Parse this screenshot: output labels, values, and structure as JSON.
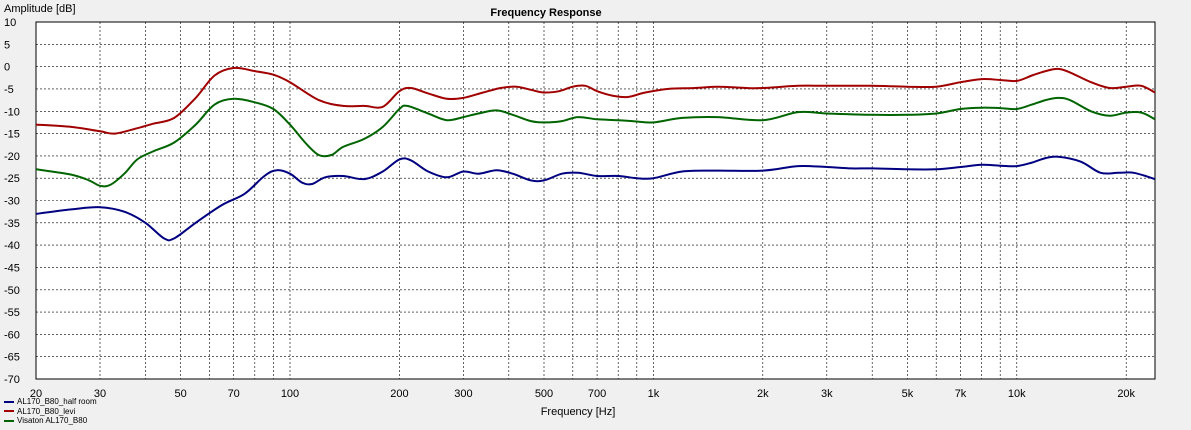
{
  "chart_data": {
    "type": "line",
    "title": "Frequency Response",
    "xlabel": "Frequency [Hz]",
    "ylabel": "Amplitude [dB]",
    "xscale": "log",
    "xlim": [
      20,
      24000
    ],
    "ylim": [
      -70,
      10
    ],
    "grid": true,
    "legend_position": "bottom-left",
    "x_ticks": [
      {
        "v": 20,
        "label": "20"
      },
      {
        "v": 30,
        "label": "30"
      },
      {
        "v": 50,
        "label": "50"
      },
      {
        "v": 70,
        "label": "70"
      },
      {
        "v": 100,
        "label": "100"
      },
      {
        "v": 200,
        "label": "200"
      },
      {
        "v": 300,
        "label": "300"
      },
      {
        "v": 500,
        "label": "500"
      },
      {
        "v": 700,
        "label": "700"
      },
      {
        "v": 1000,
        "label": "1k"
      },
      {
        "v": 2000,
        "label": "2k"
      },
      {
        "v": 3000,
        "label": "3k"
      },
      {
        "v": 5000,
        "label": "5k"
      },
      {
        "v": 7000,
        "label": "7k"
      },
      {
        "v": 10000,
        "label": "10k"
      },
      {
        "v": 20000,
        "label": "20k"
      }
    ],
    "y_ticks": [
      10,
      5,
      0,
      -5,
      -10,
      -15,
      -20,
      -25,
      -30,
      -35,
      -40,
      -45,
      -50,
      -55,
      -60,
      -65,
      -70
    ],
    "series": [
      {
        "name": "AL170_B80_half room",
        "color": "#000080",
        "points": [
          [
            20,
            -33
          ],
          [
            25,
            -32
          ],
          [
            30,
            -31.5
          ],
          [
            35,
            -32.5
          ],
          [
            40,
            -35
          ],
          [
            45,
            -38.5
          ],
          [
            48,
            -38.5
          ],
          [
            55,
            -35
          ],
          [
            65,
            -31
          ],
          [
            75,
            -28.5
          ],
          [
            85,
            -24.5
          ],
          [
            92,
            -23.2
          ],
          [
            100,
            -24
          ],
          [
            108,
            -26
          ],
          [
            115,
            -26.3
          ],
          [
            125,
            -24.8
          ],
          [
            140,
            -24.5
          ],
          [
            160,
            -25.2
          ],
          [
            180,
            -23.5
          ],
          [
            200,
            -20.8
          ],
          [
            215,
            -21
          ],
          [
            240,
            -23.5
          ],
          [
            270,
            -24.8
          ],
          [
            300,
            -23.5
          ],
          [
            330,
            -24
          ],
          [
            370,
            -23.2
          ],
          [
            410,
            -24
          ],
          [
            460,
            -25.5
          ],
          [
            500,
            -25.5
          ],
          [
            560,
            -24
          ],
          [
            620,
            -23.8
          ],
          [
            700,
            -24.5
          ],
          [
            800,
            -24.5
          ],
          [
            900,
            -25
          ],
          [
            1000,
            -25
          ],
          [
            1200,
            -23.5
          ],
          [
            1500,
            -23.3
          ],
          [
            2000,
            -23.3
          ],
          [
            2500,
            -22.3
          ],
          [
            3000,
            -22.5
          ],
          [
            3500,
            -22.8
          ],
          [
            4000,
            -22.8
          ],
          [
            5000,
            -23
          ],
          [
            6000,
            -23
          ],
          [
            7000,
            -22.5
          ],
          [
            8000,
            -22
          ],
          [
            9000,
            -22.2
          ],
          [
            10000,
            -22.3
          ],
          [
            11000,
            -21.5
          ],
          [
            12000,
            -20.5
          ],
          [
            13000,
            -20.2
          ],
          [
            15000,
            -21.3
          ],
          [
            17000,
            -23.8
          ],
          [
            19000,
            -23.8
          ],
          [
            21000,
            -23.8
          ],
          [
            24000,
            -25.2
          ]
        ]
      },
      {
        "name": "AL170_B80_levi",
        "color": "#a00000",
        "points": [
          [
            20,
            -13
          ],
          [
            25,
            -13.5
          ],
          [
            30,
            -14.5
          ],
          [
            33,
            -15
          ],
          [
            38,
            -13.8
          ],
          [
            42,
            -12.8
          ],
          [
            48,
            -11.5
          ],
          [
            55,
            -7
          ],
          [
            62,
            -2
          ],
          [
            70,
            -0.3
          ],
          [
            80,
            -1
          ],
          [
            90,
            -1.8
          ],
          [
            100,
            -3.5
          ],
          [
            120,
            -7.5
          ],
          [
            140,
            -8.8
          ],
          [
            160,
            -8.8
          ],
          [
            180,
            -9
          ],
          [
            200,
            -5.5
          ],
          [
            215,
            -4.8
          ],
          [
            240,
            -6
          ],
          [
            270,
            -7.2
          ],
          [
            300,
            -7
          ],
          [
            340,
            -5.8
          ],
          [
            380,
            -4.8
          ],
          [
            420,
            -4.5
          ],
          [
            460,
            -5.2
          ],
          [
            500,
            -5.8
          ],
          [
            550,
            -5.5
          ],
          [
            600,
            -4.5
          ],
          [
            650,
            -4.3
          ],
          [
            700,
            -5.5
          ],
          [
            770,
            -6.5
          ],
          [
            850,
            -6.8
          ],
          [
            950,
            -5.8
          ],
          [
            1100,
            -5
          ],
          [
            1300,
            -4.8
          ],
          [
            1500,
            -4.5
          ],
          [
            1800,
            -4.8
          ],
          [
            2000,
            -4.8
          ],
          [
            2500,
            -4.3
          ],
          [
            3000,
            -4.3
          ],
          [
            4000,
            -4.3
          ],
          [
            5000,
            -4.5
          ],
          [
            6000,
            -4.5
          ],
          [
            7000,
            -3.5
          ],
          [
            8000,
            -2.8
          ],
          [
            9000,
            -3
          ],
          [
            10000,
            -3.2
          ],
          [
            11000,
            -2
          ],
          [
            12000,
            -1
          ],
          [
            13000,
            -0.5
          ],
          [
            14000,
            -1.3
          ],
          [
            16000,
            -3.5
          ],
          [
            18000,
            -4.8
          ],
          [
            20000,
            -4.5
          ],
          [
            22000,
            -4.3
          ],
          [
            24000,
            -5.8
          ]
        ]
      },
      {
        "name": "Visaton AL170_B80",
        "color": "#006400",
        "points": [
          [
            20,
            -23
          ],
          [
            25,
            -24.2
          ],
          [
            28,
            -25.5
          ],
          [
            30,
            -26.7
          ],
          [
            32,
            -26.5
          ],
          [
            35,
            -24
          ],
          [
            38,
            -20.8
          ],
          [
            42,
            -19
          ],
          [
            48,
            -17
          ],
          [
            55,
            -13
          ],
          [
            62,
            -8.5
          ],
          [
            70,
            -7.2
          ],
          [
            80,
            -8
          ],
          [
            90,
            -9.5
          ],
          [
            100,
            -13
          ],
          [
            110,
            -17
          ],
          [
            120,
            -19.8
          ],
          [
            130,
            -19.8
          ],
          [
            140,
            -18
          ],
          [
            160,
            -16.2
          ],
          [
            180,
            -13.5
          ],
          [
            200,
            -9.5
          ],
          [
            210,
            -8.8
          ],
          [
            240,
            -10.5
          ],
          [
            270,
            -12
          ],
          [
            300,
            -11.3
          ],
          [
            330,
            -10.5
          ],
          [
            370,
            -9.8
          ],
          [
            410,
            -10.8
          ],
          [
            460,
            -12.2
          ],
          [
            500,
            -12.5
          ],
          [
            560,
            -12.2
          ],
          [
            620,
            -11.3
          ],
          [
            700,
            -11.8
          ],
          [
            800,
            -12
          ],
          [
            900,
            -12.3
          ],
          [
            1000,
            -12.5
          ],
          [
            1200,
            -11.5
          ],
          [
            1500,
            -11.3
          ],
          [
            2000,
            -12
          ],
          [
            2500,
            -10.2
          ],
          [
            3000,
            -10.5
          ],
          [
            4000,
            -10.8
          ],
          [
            5000,
            -10.8
          ],
          [
            6000,
            -10.5
          ],
          [
            7000,
            -9.5
          ],
          [
            8000,
            -9.2
          ],
          [
            9000,
            -9.3
          ],
          [
            10000,
            -9.5
          ],
          [
            11000,
            -8.5
          ],
          [
            12000,
            -7.5
          ],
          [
            13000,
            -7
          ],
          [
            14000,
            -7.5
          ],
          [
            16000,
            -10
          ],
          [
            18000,
            -11
          ],
          [
            20000,
            -10.3
          ],
          [
            22000,
            -10.3
          ],
          [
            24000,
            -11.8
          ]
        ]
      }
    ]
  }
}
